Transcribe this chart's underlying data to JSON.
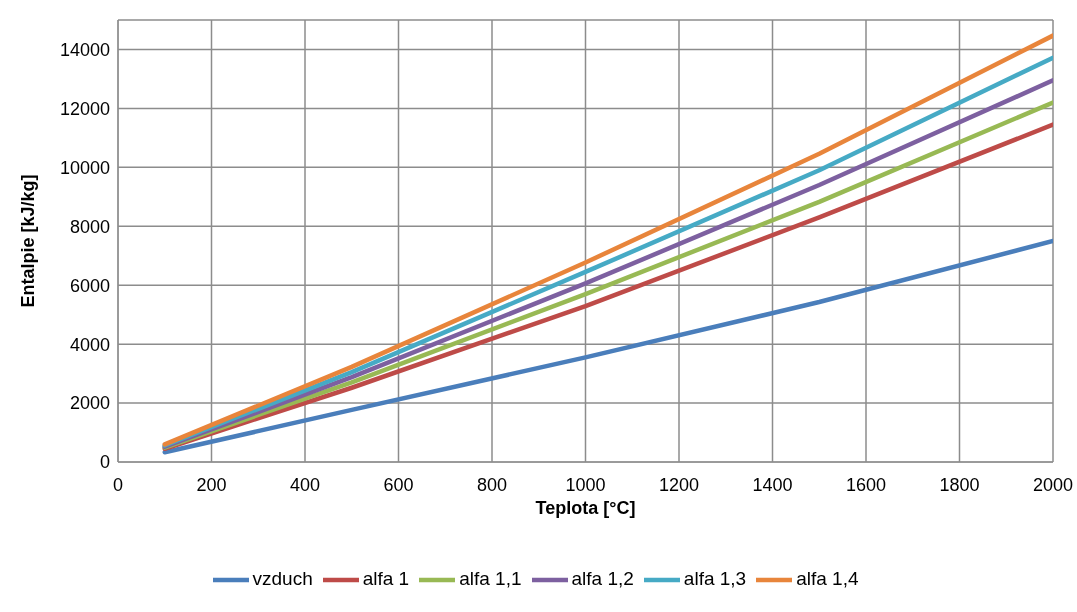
{
  "chart_data": {
    "type": "line",
    "xlabel": "Teplota [°C]",
    "ylabel": "Entalpie [kJ/kg]",
    "x": [
      100,
      500,
      1000,
      1500,
      2000
    ],
    "series": [
      {
        "name": "vzduch",
        "color": "#4a7ebb",
        "values": [
          330,
          1770,
          3550,
          5430,
          7500
        ]
      },
      {
        "name": "alfa 1",
        "color": "#be4b48",
        "values": [
          450,
          2520,
          5290,
          8300,
          11450
        ]
      },
      {
        "name": "alfa 1,1",
        "color": "#98b954",
        "values": [
          490,
          2700,
          5700,
          8830,
          12200
        ]
      },
      {
        "name": "alfa 1,2",
        "color": "#7d60a0",
        "values": [
          520,
          2880,
          6060,
          9400,
          12950
        ]
      },
      {
        "name": "alfa 1,3",
        "color": "#46aac5",
        "values": [
          560,
          3050,
          6450,
          9900,
          13720
        ]
      },
      {
        "name": "alfa 1,4",
        "color": "#e8853b",
        "values": [
          600,
          3230,
          6770,
          10460,
          14470
        ]
      }
    ],
    "xlim": [
      0,
      2000
    ],
    "xticks": [
      0,
      200,
      400,
      600,
      800,
      1000,
      1200,
      1400,
      1600,
      1800,
      2000
    ],
    "ylim": [
      0,
      15000
    ],
    "yticks": [
      0,
      2000,
      4000,
      6000,
      8000,
      10000,
      12000,
      14000
    ],
    "grid": true,
    "legend": "bottom",
    "marker": "none",
    "line_style": "solid"
  }
}
